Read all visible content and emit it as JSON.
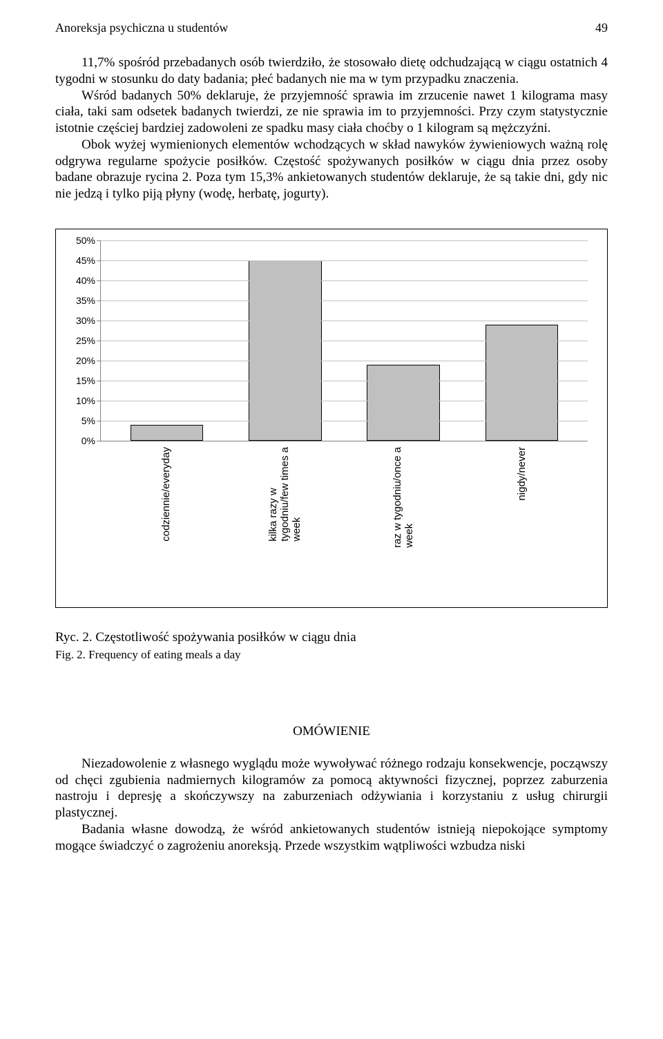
{
  "header": {
    "running_title": "Anoreksja psychiczna u studentów",
    "page_number": "49"
  },
  "body": {
    "p1": "11,7% spośród przebadanych osób twierdziło, że stosowało dietę odchudzającą w ciągu ostatnich 4 tygodni w stosunku do daty badania; płeć badanych nie ma w tym przypadku znaczenia.",
    "p2": "Wśród badanych 50% deklaruje, że przyjemność sprawia im zrzucenie nawet 1 kilograma masy ciała, taki sam odsetek badanych twierdzi, ze nie sprawia im to przyjemności. Przy czym statystycznie istotnie częściej bardziej zadowoleni ze spadku masy ciała choćby o 1 kilogram są mężczyźni.",
    "p3": "Obok wyżej wymienionych elementów wchodzących w skład nawyków żywieniowych ważną rolę odgrywa regularne spożycie posiłków. Częstość spożywanych posiłków w ciągu dnia przez osoby badane obrazuje rycina 2. Poza tym 15,3% ankietowanych studentów deklaruje, że są takie dni, gdy nic nie jedzą i tylko piją płyny (wodę, herbatę, jogurty)."
  },
  "chart": {
    "type": "bar",
    "y_max_percent": 50,
    "y_tick_step": 5,
    "y_tick_labels": [
      "0%",
      "5%",
      "10%",
      "15%",
      "20%",
      "25%",
      "30%",
      "35%",
      "40%",
      "45%",
      "50%"
    ],
    "grid_color": "#c0c0c0",
    "axis_color": "#808080",
    "bar_fill": "#c0c0c0",
    "bar_border": "#000000",
    "background": "#ffffff",
    "font_family": "Arial",
    "label_fontsize": 14,
    "categories": [
      "codziennie/everyday",
      "kilka razy w\ntygodniu/few times a\nweek",
      "raz w tygodniu/once a\nweek",
      "nigdy/never"
    ],
    "values_percent": [
      4,
      45,
      19,
      29
    ]
  },
  "figure_caption": {
    "pl": "Ryc. 2. Częstotliwość spożywania posiłków w ciągu dnia",
    "en": "Fig. 2. Frequency of eating meals a day"
  },
  "section": {
    "heading": "OMÓWIENIE",
    "p1": "Niezadowolenie z własnego wyglądu może wywoływać różnego rodzaju konsekwencje, począwszy od chęci zgubienia nadmiernych kilogramów za pomocą aktywności fizycznej, poprzez zaburzenia nastroju i depresję a skończywszy na zaburzeniach odżywiania i korzystaniu z usług chirurgii plastycznej.",
    "p2": "Badania własne dowodzą, że wśród ankietowanych studentów istnieją niepokojące symptomy mogące świadczyć o zagrożeniu anoreksją. Przede wszystkim wątpliwości wzbudza niski"
  }
}
